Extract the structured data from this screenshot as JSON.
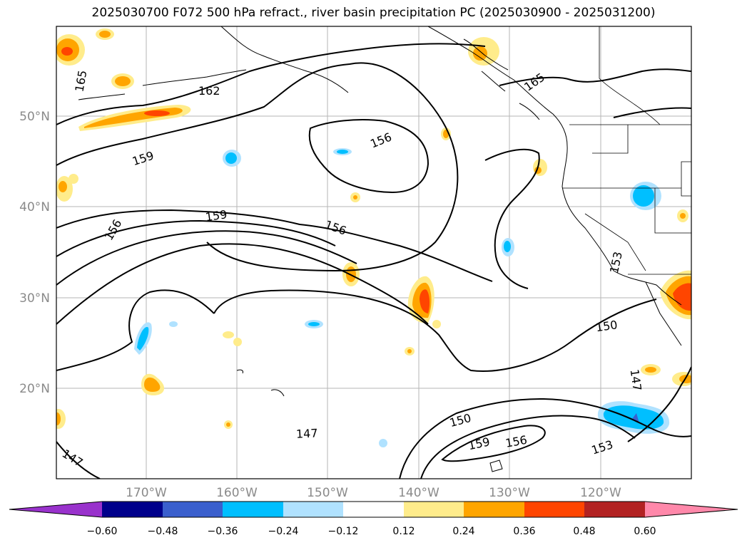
{
  "title": "2025030700 F072 500 hPa refract., river basin precipitation PC (2025030900 - 2025031200)",
  "map": {
    "lat_labels": [
      "50°N",
      "40°N",
      "30°N",
      "20°N"
    ],
    "lon_labels": [
      "170°W",
      "160°W",
      "150°W",
      "140°W",
      "130°W",
      "120°W"
    ],
    "contour_labels": [
      "165",
      "162",
      "159",
      "156",
      "159",
      "156",
      "156",
      "153",
      "150",
      "147",
      "147",
      "150",
      "159",
      "156",
      "153",
      "147",
      "165"
    ]
  },
  "colorbar": {
    "ticks": [
      "−0.60",
      "−0.48",
      "−0.36",
      "−0.24",
      "−0.12",
      "0.12",
      "0.24",
      "0.36",
      "0.48",
      "0.60"
    ],
    "colors": [
      "#9932cc",
      "#00008b",
      "#3a5fcd",
      "#00bfff",
      "#b0e2ff",
      "#ffffff",
      "#ffec8b",
      "#ffa500",
      "#ff4500",
      "#b22222",
      "#ff88aa"
    ]
  }
}
